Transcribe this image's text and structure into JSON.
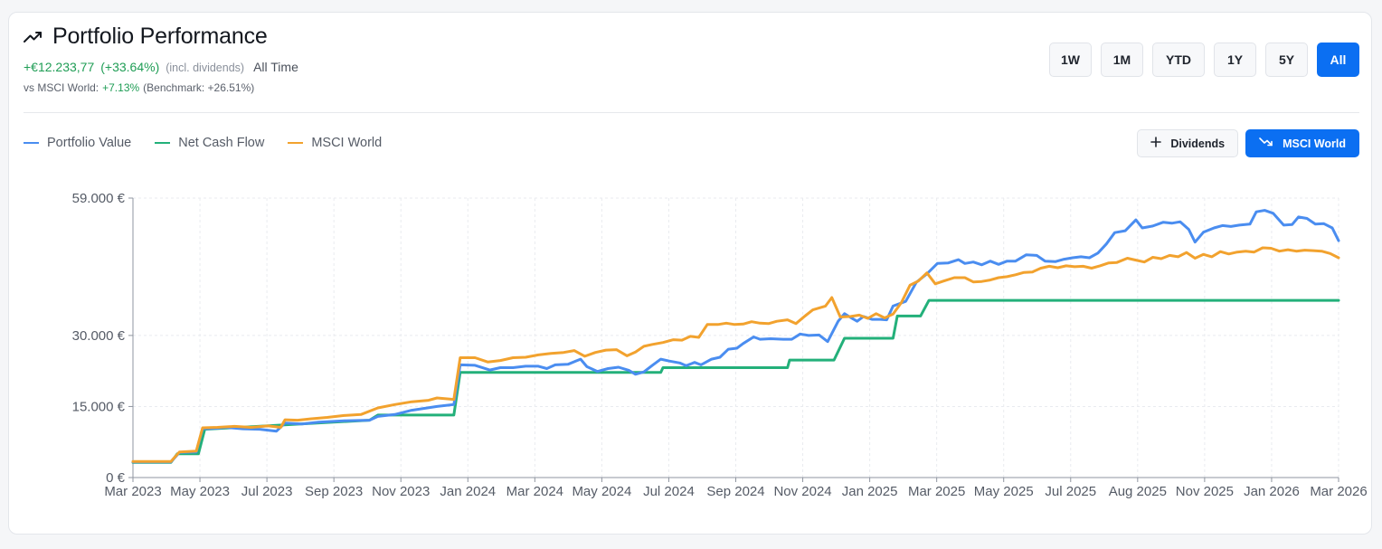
{
  "header": {
    "title": "Portfolio Performance",
    "gain_abs": "+€12.233,77",
    "gain_pct": "(+33.64%)",
    "dividends_note": "(incl. dividends)",
    "period": "All Time",
    "benchmark_prefix": "vs MSCI World:",
    "benchmark_diff": "+7.13%",
    "benchmark_note": "(Benchmark: +26.51%)"
  },
  "range_buttons": [
    {
      "label": "1W",
      "active": false
    },
    {
      "label": "1M",
      "active": false
    },
    {
      "label": "YTD",
      "active": false
    },
    {
      "label": "1Y",
      "active": false
    },
    {
      "label": "5Y",
      "active": false
    },
    {
      "label": "All",
      "active": true
    }
  ],
  "toggles": {
    "dividends_label": "Dividends",
    "msci_label": "MSCI World"
  },
  "colors": {
    "portfolio": "#4a8df0",
    "cashflow": "#23b07a",
    "msci": "#f2a22e",
    "accent": "#0b6ff2",
    "gain": "#1f9d55"
  },
  "chart_data": {
    "type": "line",
    "ylim": [
      0,
      59000
    ],
    "y_ticks": [
      {
        "value": 0,
        "label": "0 €"
      },
      {
        "value": 15000,
        "label": "15.000 €"
      },
      {
        "value": 30000,
        "label": "30.000 €"
      },
      {
        "value": 59000,
        "label": "59.000 €"
      }
    ],
    "x_ticks": [
      "Mar 2023",
      "May 2023",
      "Jul 2023",
      "Sep 2023",
      "Nov 2023",
      "Jan 2024",
      "Mar 2024",
      "May 2024",
      "Jul 2024",
      "Sep 2024",
      "Nov 2024",
      "Jan 2025",
      "Mar 2025",
      "May 2025",
      "Jul 2025",
      "Aug 2025",
      "Nov 2025",
      "Jan 2026",
      "Mar 2026"
    ],
    "grid": true,
    "legend_position": "top-left",
    "series": [
      {
        "name": "Portfolio Value",
        "color_key": "portfolio",
        "points": [
          [
            0.0,
            3300
          ],
          [
            0.9,
            3300
          ],
          [
            1.1,
            5300
          ],
          [
            1.5,
            5400
          ],
          [
            1.65,
            10300
          ],
          [
            2.0,
            10400
          ],
          [
            2.2,
            10600
          ],
          [
            2.6,
            10300
          ],
          [
            3.0,
            10200
          ],
          [
            3.4,
            9800
          ],
          [
            3.6,
            11500
          ],
          [
            4.0,
            11300
          ],
          [
            4.4,
            11700
          ],
          [
            5.0,
            12000
          ],
          [
            5.6,
            12100
          ],
          [
            5.8,
            12900
          ],
          [
            6.2,
            13300
          ],
          [
            6.6,
            14200
          ],
          [
            7.2,
            15000
          ],
          [
            7.6,
            15400
          ],
          [
            7.75,
            23800
          ],
          [
            8.1,
            23700
          ],
          [
            8.45,
            22700
          ],
          [
            8.7,
            23200
          ],
          [
            9.0,
            23200
          ],
          [
            9.3,
            23500
          ],
          [
            9.6,
            23500
          ],
          [
            9.8,
            23000
          ],
          [
            10.0,
            23800
          ],
          [
            10.3,
            23900
          ],
          [
            10.6,
            25000
          ],
          [
            10.75,
            23400
          ],
          [
            11.0,
            22400
          ],
          [
            11.25,
            23000
          ],
          [
            11.5,
            23300
          ],
          [
            11.75,
            22600
          ],
          [
            11.9,
            21800
          ],
          [
            12.1,
            22300
          ],
          [
            12.3,
            23700
          ],
          [
            12.5,
            25000
          ],
          [
            12.7,
            24600
          ],
          [
            12.95,
            24200
          ],
          [
            13.1,
            23600
          ],
          [
            13.3,
            24300
          ],
          [
            13.45,
            23800
          ],
          [
            13.7,
            25000
          ],
          [
            13.9,
            25400
          ],
          [
            14.1,
            27100
          ],
          [
            14.3,
            27300
          ],
          [
            14.45,
            28300
          ],
          [
            14.7,
            29700
          ],
          [
            14.85,
            29200
          ],
          [
            15.1,
            29300
          ],
          [
            15.4,
            29200
          ],
          [
            15.6,
            29200
          ],
          [
            15.8,
            30300
          ],
          [
            16.0,
            30000
          ],
          [
            16.25,
            30100
          ],
          [
            16.45,
            28700
          ],
          [
            16.7,
            33000
          ],
          [
            16.85,
            34600
          ],
          [
            17.05,
            33500
          ],
          [
            17.15,
            33000
          ],
          [
            17.3,
            34000
          ],
          [
            17.5,
            33400
          ],
          [
            17.7,
            33400
          ],
          [
            17.85,
            33300
          ],
          [
            18.0,
            36200
          ],
          [
            18.3,
            37200
          ],
          [
            18.55,
            41200
          ],
          [
            18.8,
            43000
          ],
          [
            19.05,
            45200
          ],
          [
            19.3,
            45300
          ],
          [
            19.55,
            46000
          ],
          [
            19.7,
            45200
          ],
          [
            19.9,
            45500
          ],
          [
            20.1,
            44900
          ],
          [
            20.3,
            45700
          ],
          [
            20.5,
            45000
          ],
          [
            20.7,
            45700
          ],
          [
            20.9,
            45700
          ],
          [
            21.15,
            47000
          ],
          [
            21.4,
            46900
          ],
          [
            21.6,
            45700
          ],
          [
            21.85,
            45600
          ],
          [
            22.05,
            46100
          ],
          [
            22.25,
            46400
          ],
          [
            22.45,
            46600
          ],
          [
            22.65,
            46400
          ],
          [
            22.85,
            47400
          ],
          [
            23.05,
            49300
          ],
          [
            23.25,
            51700
          ],
          [
            23.5,
            52100
          ],
          [
            23.75,
            54400
          ],
          [
            23.9,
            52700
          ],
          [
            24.15,
            53100
          ],
          [
            24.4,
            53900
          ],
          [
            24.6,
            53700
          ],
          [
            24.8,
            54000
          ],
          [
            25.0,
            52400
          ],
          [
            25.15,
            49700
          ],
          [
            25.35,
            51800
          ],
          [
            25.6,
            52700
          ],
          [
            25.8,
            53200
          ],
          [
            26.0,
            53000
          ],
          [
            26.2,
            53300
          ],
          [
            26.45,
            53500
          ],
          [
            26.6,
            56100
          ],
          [
            26.8,
            56400
          ],
          [
            27.0,
            55800
          ],
          [
            27.25,
            53300
          ],
          [
            27.45,
            53400
          ],
          [
            27.6,
            55000
          ],
          [
            27.8,
            54700
          ],
          [
            28.0,
            53500
          ],
          [
            28.2,
            53600
          ],
          [
            28.4,
            52700
          ],
          [
            28.55,
            50000
          ]
        ]
      },
      {
        "name": "Net Cash Flow",
        "color_key": "cashflow",
        "points": [
          [
            0.0,
            3200
          ],
          [
            0.9,
            3200
          ],
          [
            1.05,
            5000
          ],
          [
            1.55,
            5000
          ],
          [
            1.7,
            10200
          ],
          [
            5.6,
            12100
          ],
          [
            5.8,
            13200
          ],
          [
            7.6,
            13200
          ],
          [
            7.75,
            22200
          ],
          [
            12.5,
            22200
          ],
          [
            12.55,
            23200
          ],
          [
            15.5,
            23200
          ],
          [
            15.55,
            24800
          ],
          [
            16.6,
            24800
          ],
          [
            16.85,
            29400
          ],
          [
            18.0,
            29400
          ],
          [
            18.1,
            34100
          ],
          [
            18.65,
            34100
          ],
          [
            18.85,
            37400
          ],
          [
            28.55,
            37400
          ]
        ]
      },
      {
        "name": "MSCI World",
        "color_key": "msci",
        "points": [
          [
            0.0,
            3400
          ],
          [
            0.9,
            3400
          ],
          [
            1.1,
            5400
          ],
          [
            1.5,
            5600
          ],
          [
            1.65,
            10500
          ],
          [
            2.0,
            10600
          ],
          [
            2.4,
            10800
          ],
          [
            2.8,
            10600
          ],
          [
            3.2,
            10900
          ],
          [
            3.5,
            10600
          ],
          [
            3.6,
            12200
          ],
          [
            3.9,
            12100
          ],
          [
            4.2,
            12400
          ],
          [
            4.6,
            12700
          ],
          [
            5.0,
            13100
          ],
          [
            5.4,
            13300
          ],
          [
            5.8,
            14700
          ],
          [
            6.2,
            15400
          ],
          [
            6.6,
            16000
          ],
          [
            7.0,
            16300
          ],
          [
            7.2,
            16800
          ],
          [
            7.6,
            16500
          ],
          [
            7.75,
            25300
          ],
          [
            8.1,
            25300
          ],
          [
            8.4,
            24400
          ],
          [
            8.7,
            24700
          ],
          [
            9.0,
            25300
          ],
          [
            9.3,
            25400
          ],
          [
            9.6,
            25900
          ],
          [
            9.9,
            26200
          ],
          [
            10.2,
            26400
          ],
          [
            10.45,
            26800
          ],
          [
            10.7,
            25600
          ],
          [
            10.95,
            26400
          ],
          [
            11.2,
            26900
          ],
          [
            11.45,
            27000
          ],
          [
            11.7,
            25700
          ],
          [
            11.9,
            26500
          ],
          [
            12.1,
            27700
          ],
          [
            12.3,
            28100
          ],
          [
            12.55,
            28500
          ],
          [
            12.8,
            29100
          ],
          [
            13.0,
            29000
          ],
          [
            13.2,
            29800
          ],
          [
            13.4,
            29600
          ],
          [
            13.6,
            32300
          ],
          [
            13.85,
            32300
          ],
          [
            14.05,
            32600
          ],
          [
            14.25,
            32300
          ],
          [
            14.45,
            32400
          ],
          [
            14.65,
            32900
          ],
          [
            14.85,
            32600
          ],
          [
            15.05,
            32500
          ],
          [
            15.25,
            33000
          ],
          [
            15.5,
            33300
          ],
          [
            15.7,
            32500
          ],
          [
            15.9,
            34000
          ],
          [
            16.1,
            35400
          ],
          [
            16.4,
            36200
          ],
          [
            16.55,
            38000
          ],
          [
            16.75,
            33900
          ],
          [
            17.0,
            34000
          ],
          [
            17.2,
            34300
          ],
          [
            17.4,
            33600
          ],
          [
            17.6,
            34600
          ],
          [
            17.8,
            33700
          ],
          [
            18.0,
            34500
          ],
          [
            18.2,
            37000
          ],
          [
            18.4,
            40600
          ],
          [
            18.6,
            41500
          ],
          [
            18.8,
            43200
          ],
          [
            19.0,
            40900
          ],
          [
            19.2,
            41500
          ],
          [
            19.45,
            42200
          ],
          [
            19.7,
            42200
          ],
          [
            19.9,
            41300
          ],
          [
            20.1,
            41400
          ],
          [
            20.3,
            41700
          ],
          [
            20.5,
            42200
          ],
          [
            20.7,
            42400
          ],
          [
            20.9,
            42800
          ],
          [
            21.1,
            43300
          ],
          [
            21.3,
            43400
          ],
          [
            21.5,
            44200
          ],
          [
            21.7,
            44600
          ],
          [
            21.9,
            44300
          ],
          [
            22.1,
            44700
          ],
          [
            22.3,
            44500
          ],
          [
            22.5,
            44600
          ],
          [
            22.7,
            44200
          ],
          [
            22.9,
            44700
          ],
          [
            23.1,
            45300
          ],
          [
            23.3,
            45400
          ],
          [
            23.55,
            46300
          ],
          [
            23.75,
            45900
          ],
          [
            23.95,
            45500
          ],
          [
            24.15,
            46500
          ],
          [
            24.35,
            46200
          ],
          [
            24.55,
            46900
          ],
          [
            24.75,
            46600
          ],
          [
            24.95,
            47500
          ],
          [
            25.15,
            46300
          ],
          [
            25.35,
            47100
          ],
          [
            25.55,
            46600
          ],
          [
            25.75,
            47700
          ],
          [
            25.95,
            47200
          ],
          [
            26.15,
            47600
          ],
          [
            26.35,
            47800
          ],
          [
            26.55,
            47600
          ],
          [
            26.75,
            48500
          ],
          [
            26.95,
            48400
          ],
          [
            27.15,
            47800
          ],
          [
            27.35,
            48100
          ],
          [
            27.55,
            47800
          ],
          [
            27.75,
            48000
          ],
          [
            27.95,
            47900
          ],
          [
            28.15,
            47800
          ],
          [
            28.35,
            47300
          ],
          [
            28.55,
            46400
          ]
        ]
      }
    ]
  }
}
